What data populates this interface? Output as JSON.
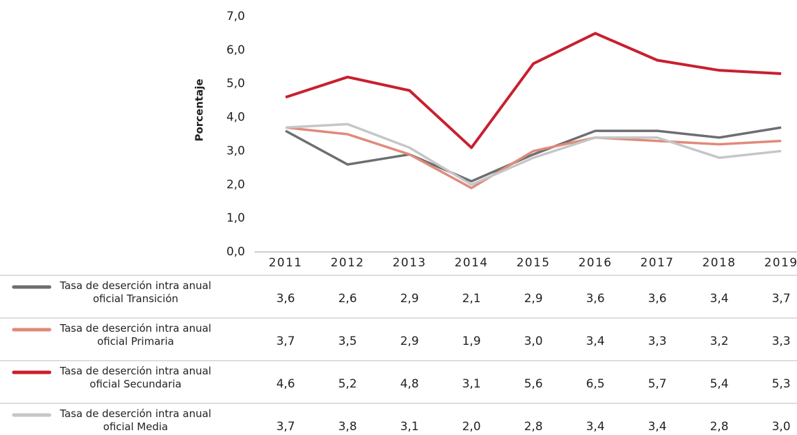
{
  "chart_data": {
    "type": "line",
    "y_label": "Porcentaje",
    "categories": [
      "2011",
      "2012",
      "2013",
      "2014",
      "2015",
      "2016",
      "2017",
      "2018",
      "2019"
    ],
    "ylim": [
      0,
      7
    ],
    "yticks": [
      {
        "value": 0,
        "label": "0,0"
      },
      {
        "value": 1,
        "label": "1,0"
      },
      {
        "value": 2,
        "label": "2,0"
      },
      {
        "value": 3,
        "label": "3,0"
      },
      {
        "value": 4,
        "label": "4,0"
      },
      {
        "value": 5,
        "label": "5,0"
      },
      {
        "value": 6,
        "label": "6,0"
      },
      {
        "value": 7,
        "label": "7,0"
      }
    ],
    "series": [
      {
        "name": "Tasa de deserción intra anual oficial Transición",
        "color": "#6d6e71",
        "values": [
          3.6,
          2.6,
          2.9,
          2.1,
          2.9,
          3.6,
          3.6,
          3.4,
          3.7
        ],
        "value_labels": [
          "3,6",
          "2,6",
          "2,9",
          "2,1",
          "2,9",
          "3,6",
          "3,6",
          "3,4",
          "3,7"
        ]
      },
      {
        "name": "Tasa de deserción intra anual oficial Primaria",
        "color": "#e08a7a",
        "values": [
          3.7,
          3.5,
          2.9,
          1.9,
          3.0,
          3.4,
          3.3,
          3.2,
          3.3
        ],
        "value_labels": [
          "3,7",
          "3,5",
          "2,9",
          "1,9",
          "3,0",
          "3,4",
          "3,3",
          "3,2",
          "3,3"
        ]
      },
      {
        "name": "Tasa de deserción intra anual oficial Secundaria",
        "color": "#c8202f",
        "values": [
          4.6,
          5.2,
          4.8,
          3.1,
          5.6,
          6.5,
          5.7,
          5.4,
          5.3
        ],
        "value_labels": [
          "4,6",
          "5,2",
          "4,8",
          "3,1",
          "5,6",
          "6,5",
          "5,7",
          "5,4",
          "5,3"
        ]
      },
      {
        "name": "Tasa de deserción intra anual oficial Media",
        "color": "#c5c6c8",
        "values": [
          3.7,
          3.8,
          3.1,
          2.0,
          2.8,
          3.4,
          3.4,
          2.8,
          3.0
        ],
        "value_labels": [
          "3,7",
          "3,8",
          "3,1",
          "2,0",
          "2,8",
          "3,4",
          "3,4",
          "2,8",
          "3,0"
        ]
      }
    ]
  }
}
